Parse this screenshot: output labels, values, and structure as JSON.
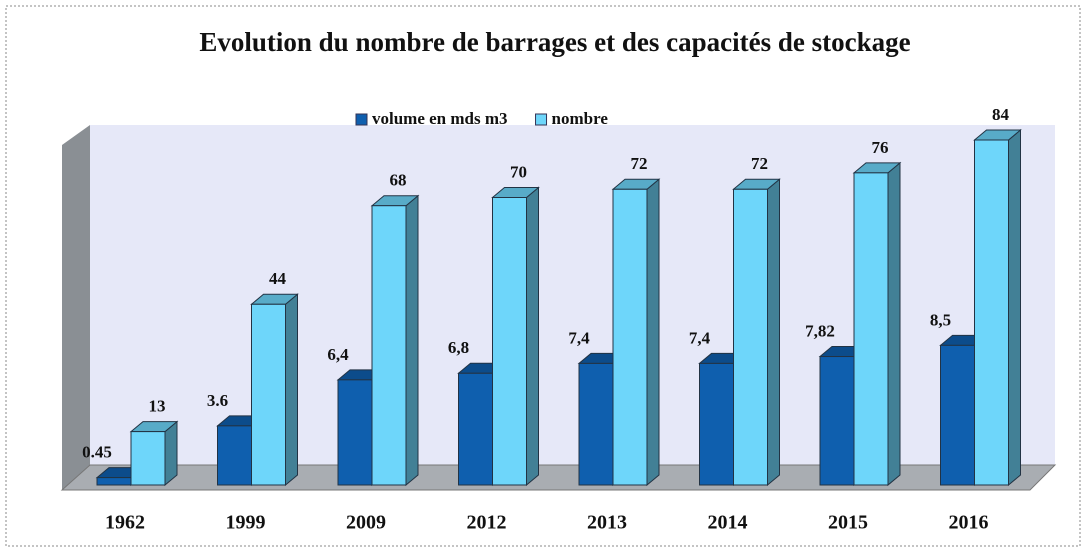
{
  "chart_data": {
    "type": "bar3d",
    "title": "Evolution du nombre de barrages et des capacités de stockage",
    "categories": [
      "1962",
      "1999",
      "2009",
      "2012",
      "2013",
      "2014",
      "2015",
      "2016"
    ],
    "series": [
      {
        "name": "volume en mds m3",
        "color": "#0f5fae",
        "axis": "y2",
        "values": [
          0.45,
          3.6,
          6.4,
          6.8,
          7.4,
          7.4,
          7.82,
          8.5
        ],
        "value_labels": [
          "0.45",
          "3.6",
          "6,4",
          "6,8",
          "7,4",
          "7,4",
          "7,82",
          "8,5"
        ]
      },
      {
        "name": "nombre",
        "color": "#6ed6fa",
        "values": [
          13,
          44,
          68,
          70,
          72,
          72,
          76,
          84
        ]
      }
    ],
    "ylim": [
      0,
      84
    ],
    "y2lim": [
      0,
      21
    ],
    "legend": "top"
  }
}
